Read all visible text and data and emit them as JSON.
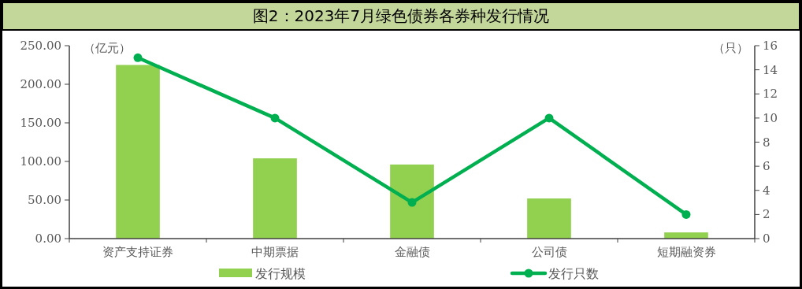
{
  "chart_data": {
    "type": "bar",
    "title": "图2：2023年7月绿色债券各券种发行情况",
    "ylabel": "（亿元）",
    "y2label": "（只）",
    "categories": [
      "资产支持证券",
      "中期票据",
      "金融债",
      "公司债",
      "短期融资券"
    ],
    "series": [
      {
        "name": "发行规模",
        "color": "#92d050",
        "values": [
          225,
          104,
          96,
          52,
          8
        ]
      },
      {
        "name": "发行只数",
        "type": "line",
        "axis": "y2",
        "color": "#00b050",
        "marker": "circle",
        "values": [
          15,
          10,
          3,
          10,
          2
        ]
      }
    ],
    "ylim": [
      0,
      250
    ],
    "yticks": [
      {
        "value": 0,
        "label": "0.00"
      },
      {
        "value": 50,
        "label": "50.00"
      },
      {
        "value": 100,
        "label": "100.00"
      },
      {
        "value": 150,
        "label": "150.00"
      },
      {
        "value": 200,
        "label": "200.00"
      },
      {
        "value": 250,
        "label": "250.00"
      }
    ],
    "y2lim": [
      0,
      16
    ],
    "y2ticks": [
      0,
      2,
      4,
      6,
      8,
      10,
      12,
      14,
      16
    ],
    "legend": "bottom",
    "grid": false
  }
}
